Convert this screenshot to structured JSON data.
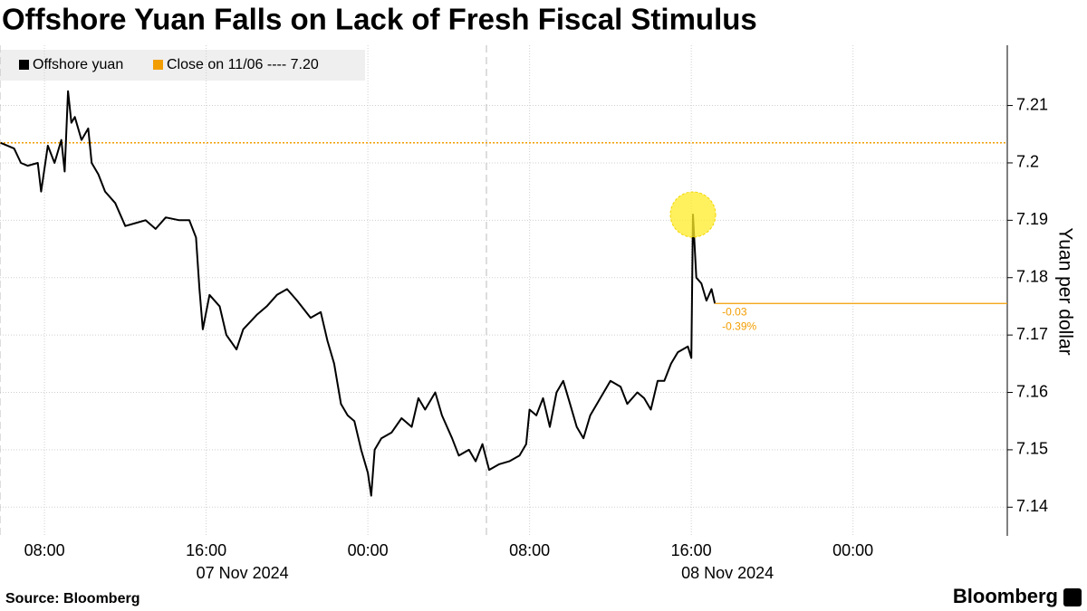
{
  "chart_data": {
    "type": "line",
    "title": "Offshore Yuan Falls on Lack of Fresh Fiscal Stimulus",
    "y_label": "Yuan per dollar",
    "source": "Source: Bloomberg",
    "brand": "Bloomberg",
    "x": [
      "2024-11-07 05:50",
      "2024-11-07 06:10",
      "2024-11-07 06:30",
      "2024-11-07 06:50",
      "2024-11-07 07:10",
      "2024-11-07 07:40",
      "2024-11-07 07:50",
      "2024-11-07 08:10",
      "2024-11-07 08:30",
      "2024-11-07 08:50",
      "2024-11-07 09:00",
      "2024-11-07 09:10",
      "2024-11-07 09:20",
      "2024-11-07 09:30",
      "2024-11-07 09:50",
      "2024-11-07 10:10",
      "2024-11-07 10:20",
      "2024-11-07 10:40",
      "2024-11-07 11:00",
      "2024-11-07 11:30",
      "2024-11-07 12:00",
      "2024-11-07 12:30",
      "2024-11-07 13:00",
      "2024-11-07 13:30",
      "2024-11-07 14:00",
      "2024-11-07 14:40",
      "2024-11-07 15:10",
      "2024-11-07 15:30",
      "2024-11-07 15:40",
      "2024-11-07 15:50",
      "2024-11-07 16:10",
      "2024-11-07 16:40",
      "2024-11-07 17:00",
      "2024-11-07 17:30",
      "2024-11-07 17:50",
      "2024-11-07 18:30",
      "2024-11-07 19:00",
      "2024-11-07 19:30",
      "2024-11-07 20:00",
      "2024-11-07 20:30",
      "2024-11-07 21:10",
      "2024-11-07 21:40",
      "2024-11-07 22:00",
      "2024-11-07 22:20",
      "2024-11-07 22:40",
      "2024-11-07 23:00",
      "2024-11-07 23:20",
      "2024-11-07 23:40",
      "2024-11-08 00:00",
      "2024-11-08 00:10",
      "2024-11-08 00:20",
      "2024-11-08 00:40",
      "2024-11-08 01:10",
      "2024-11-08 01:40",
      "2024-11-08 02:10",
      "2024-11-08 02:30",
      "2024-11-08 02:50",
      "2024-11-08 03:20",
      "2024-11-08 03:40",
      "2024-11-08 04:10",
      "2024-11-08 04:30",
      "2024-11-08 05:00",
      "2024-11-08 05:20",
      "2024-11-08 05:40",
      "2024-11-08 06:00",
      "2024-11-08 06:30",
      "2024-11-08 07:00",
      "2024-11-08 07:30",
      "2024-11-08 07:50",
      "2024-11-08 08:00",
      "2024-11-08 08:20",
      "2024-11-08 08:40",
      "2024-11-08 09:00",
      "2024-11-08 09:20",
      "2024-11-08 09:40",
      "2024-11-08 10:00",
      "2024-11-08 10:20",
      "2024-11-08 10:40",
      "2024-11-08 11:00",
      "2024-11-08 11:30",
      "2024-11-08 12:00",
      "2024-11-08 12:30",
      "2024-11-08 12:50",
      "2024-11-08 13:20",
      "2024-11-08 13:40",
      "2024-11-08 14:00",
      "2024-11-08 14:20",
      "2024-11-08 14:40",
      "2024-11-08 15:00",
      "2024-11-08 15:20",
      "2024-11-08 15:50",
      "2024-11-08 16:00",
      "2024-11-08 16:05",
      "2024-11-08 16:15",
      "2024-11-08 16:30",
      "2024-11-08 16:45",
      "2024-11-08 17:00",
      "2024-11-08 17:10"
    ],
    "series": [
      {
        "name": "Offshore yuan",
        "color": "#000000",
        "values": [
          7.2035,
          7.203,
          7.2025,
          7.2,
          7.1995,
          7.2,
          7.195,
          7.203,
          7.2,
          7.204,
          7.1985,
          7.2125,
          7.207,
          7.208,
          7.204,
          7.206,
          7.2,
          7.198,
          7.195,
          7.193,
          7.189,
          7.1895,
          7.19,
          7.1885,
          7.1905,
          7.19,
          7.19,
          7.187,
          7.178,
          7.171,
          7.177,
          7.175,
          7.17,
          7.1675,
          7.171,
          7.1735,
          7.175,
          7.177,
          7.178,
          7.176,
          7.173,
          7.174,
          7.169,
          7.165,
          7.158,
          7.156,
          7.155,
          7.15,
          7.146,
          7.142,
          7.15,
          7.152,
          7.153,
          7.1555,
          7.154,
          7.159,
          7.157,
          7.16,
          7.156,
          7.152,
          7.149,
          7.15,
          7.148,
          7.151,
          7.1465,
          7.1475,
          7.148,
          7.149,
          7.151,
          7.157,
          7.156,
          7.159,
          7.154,
          7.16,
          7.162,
          7.158,
          7.154,
          7.152,
          7.156,
          7.159,
          7.162,
          7.161,
          7.158,
          7.16,
          7.159,
          7.157,
          7.162,
          7.162,
          7.165,
          7.167,
          7.168,
          7.166,
          7.191,
          7.18,
          7.179,
          7.176,
          7.178,
          7.1755
        ]
      }
    ],
    "reference": {
      "name": "Close on 11/06 ---- 7.20",
      "value": 7.2035,
      "color": "#f29d00"
    },
    "annotations": [
      "-0.03",
      "-0.39%"
    ],
    "xlim": [
      "2024-11-07 05:48",
      "2024-11-09 07:38"
    ],
    "xticks": [
      {
        "value": "2024-11-07 08:00",
        "label": "08:00"
      },
      {
        "value": "2024-11-07 16:00",
        "label": "16:00"
      },
      {
        "value": "2024-11-08 00:00",
        "label": "00:00"
      },
      {
        "value": "2024-11-08 08:00",
        "label": "08:00"
      },
      {
        "value": "2024-11-08 16:00",
        "label": "16:00"
      },
      {
        "value": "2024-11-09 00:00",
        "label": "00:00"
      }
    ],
    "date_labels": [
      "07 Nov 2024",
      "08 Nov 2024"
    ],
    "ylim": [
      7.135,
      7.2205
    ],
    "yticks": [
      7.14,
      7.15,
      7.16,
      7.17,
      7.18,
      7.19,
      7.2,
      7.21
    ],
    "grid": true
  }
}
